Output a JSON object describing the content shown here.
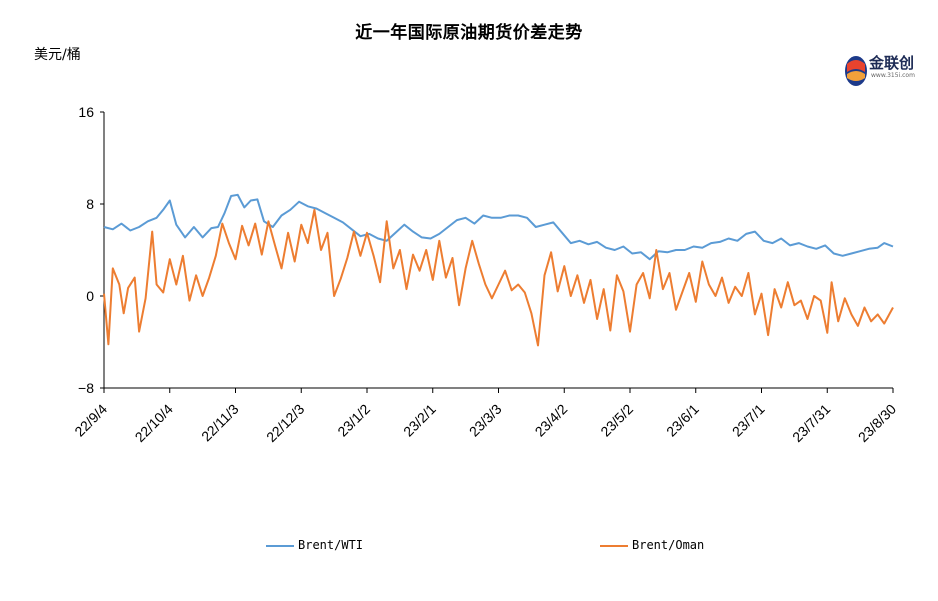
{
  "title": "近一年国际原油期货价差走势",
  "unit": "美元/桶",
  "logo": {
    "name": "金联创",
    "sub": "www.315i.com",
    "icon": "jinlianchuang-logo-icon"
  },
  "colors": {
    "brent_wti": "#5b9bd5",
    "brent_oman": "#ed7d31",
    "axis": "#000000"
  },
  "chart_data": {
    "type": "line",
    "title": "近一年国际原油期货价差走势",
    "ylabel": "美元/桶",
    "xlabel": "",
    "ylim": [
      -8,
      16
    ],
    "yticks": [
      -8,
      0,
      8,
      16
    ],
    "ytick_labels": [
      "−8",
      "0",
      "8",
      "16"
    ],
    "xlim": [
      "2022-09-04",
      "2023-08-30"
    ],
    "xticks": [
      "22/9/4",
      "22/10/4",
      "22/11/3",
      "22/12/3",
      "23/1/2",
      "23/2/1",
      "23/3/3",
      "23/4/2",
      "23/5/2",
      "23/6/1",
      "23/7/1",
      "23/7/31",
      "23/8/30"
    ],
    "grid": false,
    "legend": "bottom",
    "series": [
      {
        "name": "Brent/WTI",
        "color": "#5b9bd5",
        "points": [
          [
            "2022-09-04",
            6.0
          ],
          [
            "2022-09-08",
            5.8
          ],
          [
            "2022-09-12",
            6.3
          ],
          [
            "2022-09-16",
            5.7
          ],
          [
            "2022-09-20",
            6.0
          ],
          [
            "2022-09-24",
            6.5
          ],
          [
            "2022-09-28",
            6.8
          ],
          [
            "2022-10-01",
            7.5
          ],
          [
            "2022-10-04",
            8.3
          ],
          [
            "2022-10-07",
            6.2
          ],
          [
            "2022-10-11",
            5.1
          ],
          [
            "2022-10-15",
            6.0
          ],
          [
            "2022-10-19",
            5.1
          ],
          [
            "2022-10-23",
            5.9
          ],
          [
            "2022-10-26",
            6.0
          ],
          [
            "2022-10-29",
            7.2
          ],
          [
            "2022-11-01",
            8.7
          ],
          [
            "2022-11-04",
            8.8
          ],
          [
            "2022-11-07",
            7.7
          ],
          [
            "2022-11-10",
            8.3
          ],
          [
            "2022-11-13",
            8.4
          ],
          [
            "2022-11-16",
            6.5
          ],
          [
            "2022-11-20",
            6.0
          ],
          [
            "2022-11-24",
            7.0
          ],
          [
            "2022-11-28",
            7.5
          ],
          [
            "2022-12-02",
            8.2
          ],
          [
            "2022-12-06",
            7.8
          ],
          [
            "2022-12-10",
            7.6
          ],
          [
            "2022-12-14",
            7.2
          ],
          [
            "2022-12-18",
            6.8
          ],
          [
            "2022-12-22",
            6.4
          ],
          [
            "2022-12-26",
            5.8
          ],
          [
            "2022-12-30",
            5.2
          ],
          [
            "2023-01-03",
            5.4
          ],
          [
            "2023-01-07",
            5.0
          ],
          [
            "2023-01-11",
            4.8
          ],
          [
            "2023-01-15",
            5.5
          ],
          [
            "2023-01-19",
            6.2
          ],
          [
            "2023-01-23",
            5.6
          ],
          [
            "2023-01-27",
            5.1
          ],
          [
            "2023-01-31",
            5.0
          ],
          [
            "2023-02-04",
            5.4
          ],
          [
            "2023-02-08",
            6.0
          ],
          [
            "2023-02-12",
            6.6
          ],
          [
            "2023-02-16",
            6.8
          ],
          [
            "2023-02-20",
            6.3
          ],
          [
            "2023-02-24",
            7.0
          ],
          [
            "2023-02-28",
            6.8
          ],
          [
            "2023-03-04",
            6.8
          ],
          [
            "2023-03-08",
            7.0
          ],
          [
            "2023-03-12",
            7.0
          ],
          [
            "2023-03-16",
            6.8
          ],
          [
            "2023-03-20",
            6.0
          ],
          [
            "2023-03-24",
            6.2
          ],
          [
            "2023-03-28",
            6.4
          ],
          [
            "2023-04-01",
            5.5
          ],
          [
            "2023-04-05",
            4.6
          ],
          [
            "2023-04-09",
            4.8
          ],
          [
            "2023-04-13",
            4.5
          ],
          [
            "2023-04-17",
            4.7
          ],
          [
            "2023-04-21",
            4.2
          ],
          [
            "2023-04-25",
            4.0
          ],
          [
            "2023-04-29",
            4.3
          ],
          [
            "2023-05-03",
            3.7
          ],
          [
            "2023-05-07",
            3.8
          ],
          [
            "2023-05-11",
            3.2
          ],
          [
            "2023-05-15",
            3.9
          ],
          [
            "2023-05-19",
            3.8
          ],
          [
            "2023-05-23",
            4.0
          ],
          [
            "2023-05-27",
            4.0
          ],
          [
            "2023-05-31",
            4.3
          ],
          [
            "2023-06-04",
            4.2
          ],
          [
            "2023-06-08",
            4.6
          ],
          [
            "2023-06-12",
            4.7
          ],
          [
            "2023-06-16",
            5.0
          ],
          [
            "2023-06-20",
            4.8
          ],
          [
            "2023-06-24",
            5.4
          ],
          [
            "2023-06-28",
            5.6
          ],
          [
            "2023-07-02",
            4.8
          ],
          [
            "2023-07-06",
            4.6
          ],
          [
            "2023-07-10",
            5.0
          ],
          [
            "2023-07-14",
            4.4
          ],
          [
            "2023-07-18",
            4.6
          ],
          [
            "2023-07-22",
            4.3
          ],
          [
            "2023-07-26",
            4.1
          ],
          [
            "2023-07-30",
            4.4
          ],
          [
            "2023-08-03",
            3.7
          ],
          [
            "2023-08-07",
            3.5
          ],
          [
            "2023-08-11",
            3.7
          ],
          [
            "2023-08-15",
            3.9
          ],
          [
            "2023-08-19",
            4.1
          ],
          [
            "2023-08-23",
            4.2
          ],
          [
            "2023-08-26",
            4.6
          ],
          [
            "2023-08-30",
            4.3
          ]
        ]
      },
      {
        "name": "Brent/Oman",
        "color": "#ed7d31",
        "points": [
          [
            "2022-09-04",
            0.2
          ],
          [
            "2022-09-06",
            -4.2
          ],
          [
            "2022-09-08",
            2.4
          ],
          [
            "2022-09-11",
            1.0
          ],
          [
            "2022-09-13",
            -1.5
          ],
          [
            "2022-09-15",
            0.7
          ],
          [
            "2022-09-18",
            1.6
          ],
          [
            "2022-09-20",
            -3.1
          ],
          [
            "2022-09-23",
            -0.2
          ],
          [
            "2022-09-26",
            5.6
          ],
          [
            "2022-09-28",
            1.0
          ],
          [
            "2022-10-01",
            0.3
          ],
          [
            "2022-10-04",
            3.2
          ],
          [
            "2022-10-07",
            1.0
          ],
          [
            "2022-10-10",
            3.5
          ],
          [
            "2022-10-13",
            -0.4
          ],
          [
            "2022-10-16",
            1.8
          ],
          [
            "2022-10-19",
            0.0
          ],
          [
            "2022-10-22",
            1.6
          ],
          [
            "2022-10-25",
            3.5
          ],
          [
            "2022-10-28",
            6.3
          ],
          [
            "2022-10-31",
            4.6
          ],
          [
            "2022-11-03",
            3.2
          ],
          [
            "2022-11-06",
            6.1
          ],
          [
            "2022-11-09",
            4.4
          ],
          [
            "2022-11-12",
            6.3
          ],
          [
            "2022-11-15",
            3.6
          ],
          [
            "2022-11-18",
            6.5
          ],
          [
            "2022-11-21",
            4.4
          ],
          [
            "2022-11-24",
            2.4
          ],
          [
            "2022-11-27",
            5.5
          ],
          [
            "2022-11-30",
            3.0
          ],
          [
            "2022-12-03",
            6.2
          ],
          [
            "2022-12-06",
            4.6
          ],
          [
            "2022-12-09",
            7.5
          ],
          [
            "2022-12-12",
            4.0
          ],
          [
            "2022-12-15",
            5.5
          ],
          [
            "2022-12-18",
            0.0
          ],
          [
            "2022-12-21",
            1.5
          ],
          [
            "2022-12-24",
            3.3
          ],
          [
            "2022-12-27",
            5.6
          ],
          [
            "2022-12-30",
            3.5
          ],
          [
            "2023-01-02",
            5.5
          ],
          [
            "2023-01-05",
            3.5
          ],
          [
            "2023-01-08",
            1.2
          ],
          [
            "2023-01-11",
            6.5
          ],
          [
            "2023-01-14",
            2.4
          ],
          [
            "2023-01-17",
            4.0
          ],
          [
            "2023-01-20",
            0.6
          ],
          [
            "2023-01-23",
            3.6
          ],
          [
            "2023-01-26",
            2.2
          ],
          [
            "2023-01-29",
            4.0
          ],
          [
            "2023-02-01",
            1.4
          ],
          [
            "2023-02-04",
            4.8
          ],
          [
            "2023-02-07",
            1.6
          ],
          [
            "2023-02-10",
            3.3
          ],
          [
            "2023-02-13",
            -0.8
          ],
          [
            "2023-02-16",
            2.4
          ],
          [
            "2023-02-19",
            4.8
          ],
          [
            "2023-02-22",
            2.8
          ],
          [
            "2023-02-25",
            1.0
          ],
          [
            "2023-02-28",
            -0.2
          ],
          [
            "2023-03-03",
            1.0
          ],
          [
            "2023-03-06",
            2.2
          ],
          [
            "2023-03-09",
            0.5
          ],
          [
            "2023-03-12",
            1.0
          ],
          [
            "2023-03-15",
            0.3
          ],
          [
            "2023-03-18",
            -1.5
          ],
          [
            "2023-03-21",
            -4.3
          ],
          [
            "2023-03-24",
            1.8
          ],
          [
            "2023-03-27",
            3.8
          ],
          [
            "2023-03-30",
            0.4
          ],
          [
            "2023-04-02",
            2.6
          ],
          [
            "2023-04-05",
            0.0
          ],
          [
            "2023-04-08",
            1.8
          ],
          [
            "2023-04-11",
            -0.6
          ],
          [
            "2023-04-14",
            1.4
          ],
          [
            "2023-04-17",
            -2.0
          ],
          [
            "2023-04-20",
            0.6
          ],
          [
            "2023-04-23",
            -3.0
          ],
          [
            "2023-04-26",
            1.8
          ],
          [
            "2023-04-29",
            0.4
          ],
          [
            "2023-05-02",
            -3.1
          ],
          [
            "2023-05-05",
            1.0
          ],
          [
            "2023-05-08",
            2.0
          ],
          [
            "2023-05-11",
            -0.2
          ],
          [
            "2023-05-14",
            4.0
          ],
          [
            "2023-05-17",
            0.6
          ],
          [
            "2023-05-20",
            2.0
          ],
          [
            "2023-05-23",
            -1.2
          ],
          [
            "2023-05-26",
            0.4
          ],
          [
            "2023-05-29",
            2.0
          ],
          [
            "2023-06-01",
            -0.5
          ],
          [
            "2023-06-04",
            3.0
          ],
          [
            "2023-06-07",
            1.0
          ],
          [
            "2023-06-10",
            0.0
          ],
          [
            "2023-06-13",
            1.6
          ],
          [
            "2023-06-16",
            -0.6
          ],
          [
            "2023-06-19",
            0.8
          ],
          [
            "2023-06-22",
            0.0
          ],
          [
            "2023-06-25",
            2.0
          ],
          [
            "2023-06-28",
            -1.6
          ],
          [
            "2023-07-01",
            0.2
          ],
          [
            "2023-07-04",
            -3.4
          ],
          [
            "2023-07-07",
            0.6
          ],
          [
            "2023-07-10",
            -1.0
          ],
          [
            "2023-07-13",
            1.2
          ],
          [
            "2023-07-16",
            -0.8
          ],
          [
            "2023-07-19",
            -0.4
          ],
          [
            "2023-07-22",
            -2.0
          ],
          [
            "2023-07-25",
            0.0
          ],
          [
            "2023-07-28",
            -0.4
          ],
          [
            "2023-07-31",
            -3.2
          ],
          [
            "2023-08-02",
            1.2
          ],
          [
            "2023-08-05",
            -2.2
          ],
          [
            "2023-08-08",
            -0.2
          ],
          [
            "2023-08-11",
            -1.6
          ],
          [
            "2023-08-14",
            -2.6
          ],
          [
            "2023-08-17",
            -1.0
          ],
          [
            "2023-08-20",
            -2.2
          ],
          [
            "2023-08-23",
            -1.6
          ],
          [
            "2023-08-26",
            -2.4
          ],
          [
            "2023-08-30",
            -1.0
          ]
        ]
      }
    ]
  }
}
